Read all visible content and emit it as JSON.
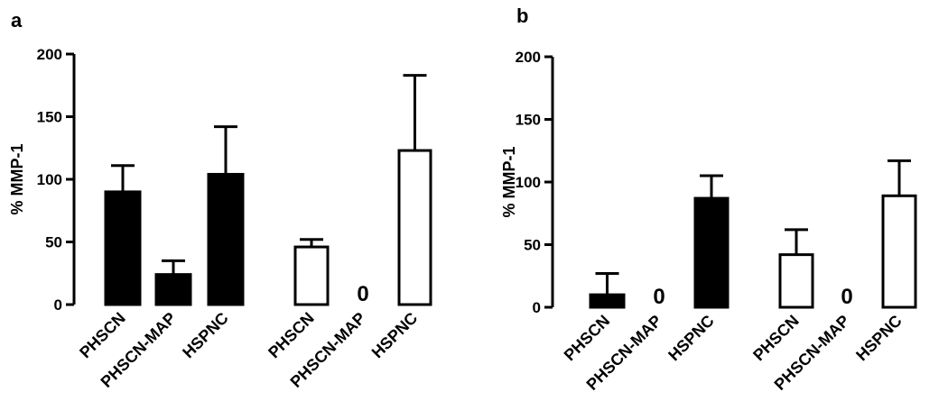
{
  "chart_data": [
    {
      "panel_label": "a",
      "type": "bar",
      "ylabel": "% MMP-1",
      "ylim": [
        0,
        200
      ],
      "yticks": [
        "0",
        "50",
        "100",
        "150",
        "200"
      ],
      "grid": false,
      "groups": [
        {
          "fill": "filled",
          "categories": [
            "PHSCN",
            "PHSCN-MAP",
            "HSPNC"
          ],
          "values": [
            90,
            24,
            104
          ],
          "errors": [
            21,
            11,
            38
          ],
          "zero_labels": [
            "",
            "",
            ""
          ]
        },
        {
          "fill": "open",
          "categories": [
            "PHSCN",
            "PHSCN-MAP",
            "HSPNC"
          ],
          "values": [
            46,
            0,
            123
          ],
          "errors": [
            6,
            0,
            60
          ],
          "zero_labels": [
            "",
            "0",
            ""
          ]
        }
      ]
    },
    {
      "panel_label": "b",
      "type": "bar",
      "ylabel": "% MMP-1",
      "ylim": [
        0,
        200
      ],
      "yticks": [
        "0",
        "50",
        "100",
        "150",
        "200"
      ],
      "grid": false,
      "groups": [
        {
          "fill": "filled",
          "categories": [
            "PHSCN",
            "PHSCN-MAP",
            "HSPNC"
          ],
          "values": [
            10,
            0,
            87
          ],
          "errors": [
            17,
            0,
            18
          ],
          "zero_labels": [
            "",
            "0",
            ""
          ]
        },
        {
          "fill": "open",
          "categories": [
            "PHSCN",
            "PHSCN-MAP",
            "HSPNC"
          ],
          "values": [
            42,
            0,
            89
          ],
          "errors": [
            20,
            0,
            28
          ],
          "zero_labels": [
            "",
            "0",
            ""
          ]
        }
      ]
    }
  ],
  "colors": {
    "filled": "#000000",
    "open": "#ffffff",
    "stroke": "#000000"
  }
}
